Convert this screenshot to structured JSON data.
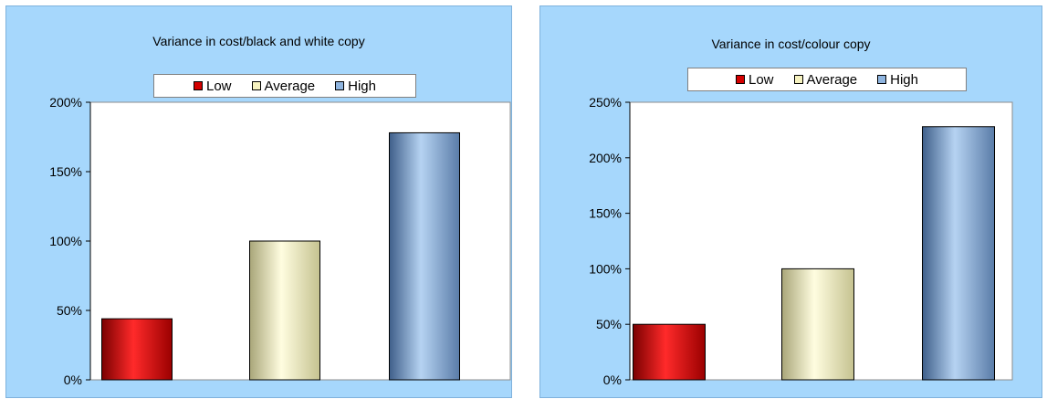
{
  "colors": {
    "low": "#d40000",
    "average": "#f6f2c0",
    "high": "#8fb5e0",
    "panel": "#a6d7fc"
  },
  "chart_data": [
    {
      "type": "bar",
      "title": "Variance in cost/black and white copy",
      "categories": [
        "Low",
        "Average",
        "High"
      ],
      "values": [
        44,
        100,
        178
      ],
      "unit": "%",
      "ylim": [
        0,
        200
      ],
      "yticks": [
        "0%",
        "50%",
        "100%",
        "150%",
        "200%"
      ],
      "legend": [
        "Low",
        "Average",
        "High"
      ],
      "legend_position": "top"
    },
    {
      "type": "bar",
      "title": "Variance in cost/colour copy",
      "categories": [
        "Low",
        "Average",
        "High"
      ],
      "values": [
        50,
        100,
        228
      ],
      "unit": "%",
      "ylim": [
        0,
        250
      ],
      "yticks": [
        "0%",
        "50%",
        "100%",
        "150%",
        "200%",
        "250%"
      ],
      "legend": [
        "Low",
        "Average",
        "High"
      ],
      "legend_position": "top"
    }
  ]
}
